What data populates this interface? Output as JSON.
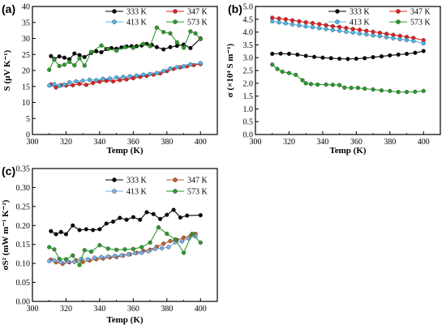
{
  "chart_data": [
    {
      "panel_label": "(a)",
      "type": "line",
      "xlabel": "Temp (K)",
      "ylabel": "S (μV K⁻¹)",
      "xlim": [
        300,
        410
      ],
      "ylim": [
        0,
        40
      ],
      "xticks": [
        "300",
        "320",
        "340",
        "360",
        "380",
        "400"
      ],
      "yticks": [
        "0",
        "5",
        "10",
        "15",
        "20",
        "25",
        "30",
        "35",
        "40"
      ],
      "legend_position": "top",
      "series": [
        {
          "name": "333 K",
          "color": "#000000",
          "x": [
            311,
            313,
            316,
            319,
            322,
            325,
            328,
            331,
            335,
            338,
            341,
            344,
            347,
            350,
            353,
            356,
            359,
            362,
            365,
            368,
            371,
            374,
            378,
            382,
            386,
            390,
            394,
            400
          ],
          "y": [
            24.5,
            23.6,
            24.4,
            24,
            23.5,
            25.3,
            24.8,
            24.2,
            25.5,
            26,
            25.7,
            26.7,
            27,
            26.8,
            27.2,
            27.5,
            27.6,
            27.6,
            27.8,
            28.3,
            28,
            27.3,
            26.6,
            27.3,
            27.7,
            28.1,
            27,
            30
          ]
        },
        {
          "name": "347 K",
          "color": "#e02020",
          "x": [
            311,
            314,
            317,
            320,
            324,
            328,
            332,
            336,
            340,
            344,
            348,
            352,
            356,
            360,
            364,
            368,
            372,
            376,
            380,
            384,
            388,
            392,
            396,
            400
          ],
          "y": [
            15.6,
            14.7,
            15.4,
            15.3,
            15.4,
            15.8,
            15.5,
            16.1,
            16.5,
            16.8,
            16.6,
            17,
            17.2,
            17.6,
            18,
            18.3,
            18.7,
            19.1,
            19.8,
            20.5,
            21,
            21.3,
            21.7,
            22
          ]
        },
        {
          "name": "413 K",
          "color": "#50b4e8",
          "x": [
            310,
            313,
            316,
            319,
            322,
            326,
            330,
            334,
            338,
            342,
            346,
            350,
            354,
            358,
            362,
            366,
            370,
            374,
            378,
            382,
            386,
            390,
            394,
            400
          ],
          "y": [
            15.3,
            15.7,
            15.2,
            15.6,
            16.3,
            16.6,
            16.8,
            17.1,
            17,
            17.4,
            17.5,
            17.8,
            18,
            18.2,
            18.4,
            18.7,
            18.9,
            19.2,
            19.8,
            20.6,
            21,
            21.3,
            21.9,
            22.3
          ]
        },
        {
          "name": "573 K",
          "color": "#2a9a2a",
          "x": [
            310,
            313,
            316,
            319,
            322,
            325,
            328,
            331,
            335,
            341,
            345,
            350,
            355,
            360,
            366,
            370,
            374,
            378,
            382,
            386,
            390,
            394,
            397,
            400
          ],
          "y": [
            20.2,
            23.4,
            21.4,
            21.8,
            22.7,
            21.6,
            23.8,
            21.5,
            25.8,
            27.8,
            26.7,
            26.2,
            27.3,
            27.1,
            28.3,
            27.6,
            33.4,
            32,
            31.6,
            28.8,
            27.1,
            32.2,
            31.6,
            29.8
          ]
        }
      ]
    },
    {
      "panel_label": "(b)",
      "type": "line",
      "xlabel": "Temp (K)",
      "ylabel": "σ (×10⁴ S m⁻¹)",
      "xlim": [
        300,
        410
      ],
      "ylim": [
        0,
        5
      ],
      "xticks": [
        "300",
        "320",
        "340",
        "360",
        "380",
        "400"
      ],
      "yticks": [
        "0.0",
        "0.5",
        "1.0",
        "1.5",
        "2.0",
        "2.5",
        "3.0",
        "3.5",
        "4.0",
        "4.5",
        "5.0"
      ],
      "legend_position": "top",
      "series": [
        {
          "name": "333 K",
          "color": "#000000",
          "x": [
            310,
            315,
            320,
            325,
            330,
            335,
            340,
            345,
            350,
            355,
            360,
            365,
            370,
            375,
            380,
            385,
            390,
            395,
            400
          ],
          "y": [
            3.15,
            3.16,
            3.15,
            3.12,
            3.07,
            3.03,
            3,
            2.98,
            2.96,
            2.95,
            2.96,
            2.98,
            3.02,
            3.05,
            3.09,
            3.12,
            3.15,
            3.19,
            3.26
          ]
        },
        {
          "name": "347 K",
          "color": "#e02020",
          "x": [
            310,
            314,
            318,
            322,
            326,
            330,
            334,
            338,
            342,
            346,
            350,
            354,
            358,
            362,
            366,
            370,
            374,
            378,
            382,
            386,
            390,
            394,
            400
          ],
          "y": [
            4.56,
            4.53,
            4.5,
            4.46,
            4.42,
            4.38,
            4.35,
            4.31,
            4.27,
            4.23,
            4.2,
            4.16,
            4.12,
            4.09,
            4.05,
            4.01,
            3.97,
            3.93,
            3.89,
            3.85,
            3.81,
            3.77,
            3.68
          ]
        },
        {
          "name": "413 K",
          "color": "#50b4e8",
          "x": [
            310,
            314,
            318,
            322,
            326,
            330,
            334,
            338,
            342,
            346,
            350,
            354,
            358,
            362,
            366,
            370,
            374,
            378,
            382,
            386,
            390,
            394,
            400
          ],
          "y": [
            4.42,
            4.38,
            4.34,
            4.3,
            4.26,
            4.22,
            4.19,
            4.15,
            4.12,
            4.08,
            4.05,
            4.01,
            3.98,
            3.94,
            3.91,
            3.87,
            3.84,
            3.8,
            3.76,
            3.72,
            3.69,
            3.65,
            3.56
          ]
        },
        {
          "name": "573 K",
          "color": "#2a9a2a",
          "x": [
            310,
            313,
            316,
            320,
            324,
            328,
            330,
            333,
            337,
            342,
            346,
            350,
            353,
            357,
            361,
            365,
            370,
            375,
            380,
            385,
            390,
            395,
            400
          ],
          "y": [
            2.73,
            2.56,
            2.45,
            2.4,
            2.33,
            2.12,
            2,
            1.97,
            1.95,
            1.95,
            1.94,
            1.93,
            1.83,
            1.82,
            1.82,
            1.79,
            1.76,
            1.72,
            1.7,
            1.66,
            1.66,
            1.67,
            1.7
          ]
        }
      ]
    },
    {
      "panel_label": "(c)",
      "type": "line",
      "xlabel": "Temp (K)",
      "ylabel": "σS² (mW m⁻¹ K⁻²)",
      "xlim": [
        300,
        410
      ],
      "ylim": [
        0,
        0.35
      ],
      "xticks": [
        "300",
        "320",
        "340",
        "360",
        "380",
        "400"
      ],
      "yticks": [
        "0.00",
        "0.05",
        "0.10",
        "0.15",
        "0.20",
        "0.25",
        "0.30",
        "0.35"
      ],
      "legend_position": "top",
      "series": [
        {
          "name": "333 K",
          "color": "#000000",
          "x": [
            311,
            314,
            317,
            320,
            324,
            328,
            332,
            336,
            340,
            344,
            348,
            352,
            356,
            360,
            364,
            368,
            372,
            376,
            380,
            384,
            388,
            392,
            400
          ],
          "y": [
            0.185,
            0.177,
            0.183,
            0.177,
            0.2,
            0.188,
            0.19,
            0.188,
            0.19,
            0.205,
            0.21,
            0.22,
            0.215,
            0.222,
            0.215,
            0.235,
            0.23,
            0.217,
            0.228,
            0.241,
            0.221,
            0.226,
            0.227
          ]
        },
        {
          "name": "347 K",
          "color": "#c06030",
          "x": [
            311,
            314,
            318,
            322,
            326,
            330,
            334,
            338,
            342,
            346,
            350,
            354,
            358,
            362,
            366,
            370,
            374,
            378,
            382,
            386,
            390,
            394,
            397
          ],
          "y": [
            0.11,
            0.103,
            0.099,
            0.103,
            0.108,
            0.104,
            0.108,
            0.111,
            0.113,
            0.116,
            0.117,
            0.121,
            0.124,
            0.128,
            0.133,
            0.136,
            0.144,
            0.152,
            0.159,
            0.162,
            0.168,
            0.172,
            0.178
          ]
        },
        {
          "name": "413 K",
          "color": "#7aaee8",
          "x": [
            310,
            313,
            317,
            321,
            325,
            329,
            333,
            337,
            341,
            345,
            349,
            353,
            357,
            361,
            365,
            369,
            373,
            377,
            381,
            385,
            389,
            393,
            397
          ],
          "y": [
            0.106,
            0.108,
            0.103,
            0.105,
            0.104,
            0.112,
            0.111,
            0.115,
            0.117,
            0.118,
            0.12,
            0.121,
            0.124,
            0.127,
            0.128,
            0.132,
            0.138,
            0.14,
            0.143,
            0.156,
            0.158,
            0.166,
            0.172
          ]
        },
        {
          "name": "573 K",
          "color": "#2a9a2a",
          "x": [
            310,
            313,
            316,
            320,
            324,
            328,
            331,
            335,
            340,
            345,
            350,
            355,
            360,
            365,
            370,
            375,
            380,
            385,
            390,
            395,
            400
          ],
          "y": [
            0.143,
            0.137,
            0.112,
            0.111,
            0.121,
            0.096,
            0.135,
            0.131,
            0.148,
            0.139,
            0.136,
            0.137,
            0.138,
            0.143,
            0.155,
            0.195,
            0.178,
            0.163,
            0.128,
            0.178,
            0.155
          ]
        }
      ]
    }
  ]
}
